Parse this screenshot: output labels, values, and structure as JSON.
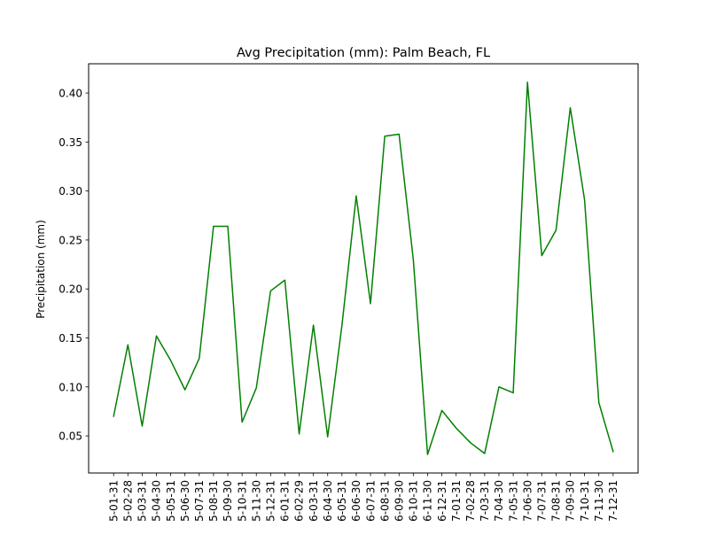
{
  "chart_data": {
    "type": "line",
    "title": "Avg Precipitation (mm): Palm Beach, FL",
    "xlabel": "",
    "ylabel": "Precipitation (mm)",
    "x": [
      "5-01-31",
      "5-02-28",
      "5-03-31",
      "5-04-30",
      "5-05-31",
      "5-06-30",
      "5-07-31",
      "5-08-31",
      "5-09-30",
      "5-10-31",
      "5-11-30",
      "5-12-31",
      "6-01-31",
      "6-02-29",
      "6-03-31",
      "6-04-30",
      "6-05-31",
      "6-06-30",
      "6-07-31",
      "6-08-31",
      "6-09-30",
      "6-10-31",
      "6-11-30",
      "6-12-31",
      "7-01-31",
      "7-02-28",
      "7-03-31",
      "7-04-30",
      "7-05-31",
      "7-06-30",
      "7-07-31",
      "7-08-31",
      "7-09-30",
      "7-10-31",
      "7-11-30",
      "7-12-31"
    ],
    "series": [
      {
        "name": "",
        "color": "#008000",
        "values": [
          0.07,
          0.143,
          0.06,
          0.152,
          0.127,
          0.097,
          0.129,
          0.264,
          0.264,
          0.064,
          0.099,
          0.198,
          0.209,
          0.052,
          0.163,
          0.049,
          0.163,
          0.295,
          0.185,
          0.356,
          0.358,
          0.23,
          0.031,
          0.076,
          0.058,
          0.043,
          0.032,
          0.1,
          0.094,
          0.411,
          0.234,
          0.26,
          0.385,
          0.291,
          0.084,
          0.034
        ]
      }
    ],
    "ylim": [
      0.0121,
      0.4299
    ],
    "yticks": [
      "0.05",
      "0.10",
      "0.15",
      "0.20",
      "0.25",
      "0.30",
      "0.35",
      "0.40"
    ],
    "grid": false,
    "legend": "none"
  }
}
